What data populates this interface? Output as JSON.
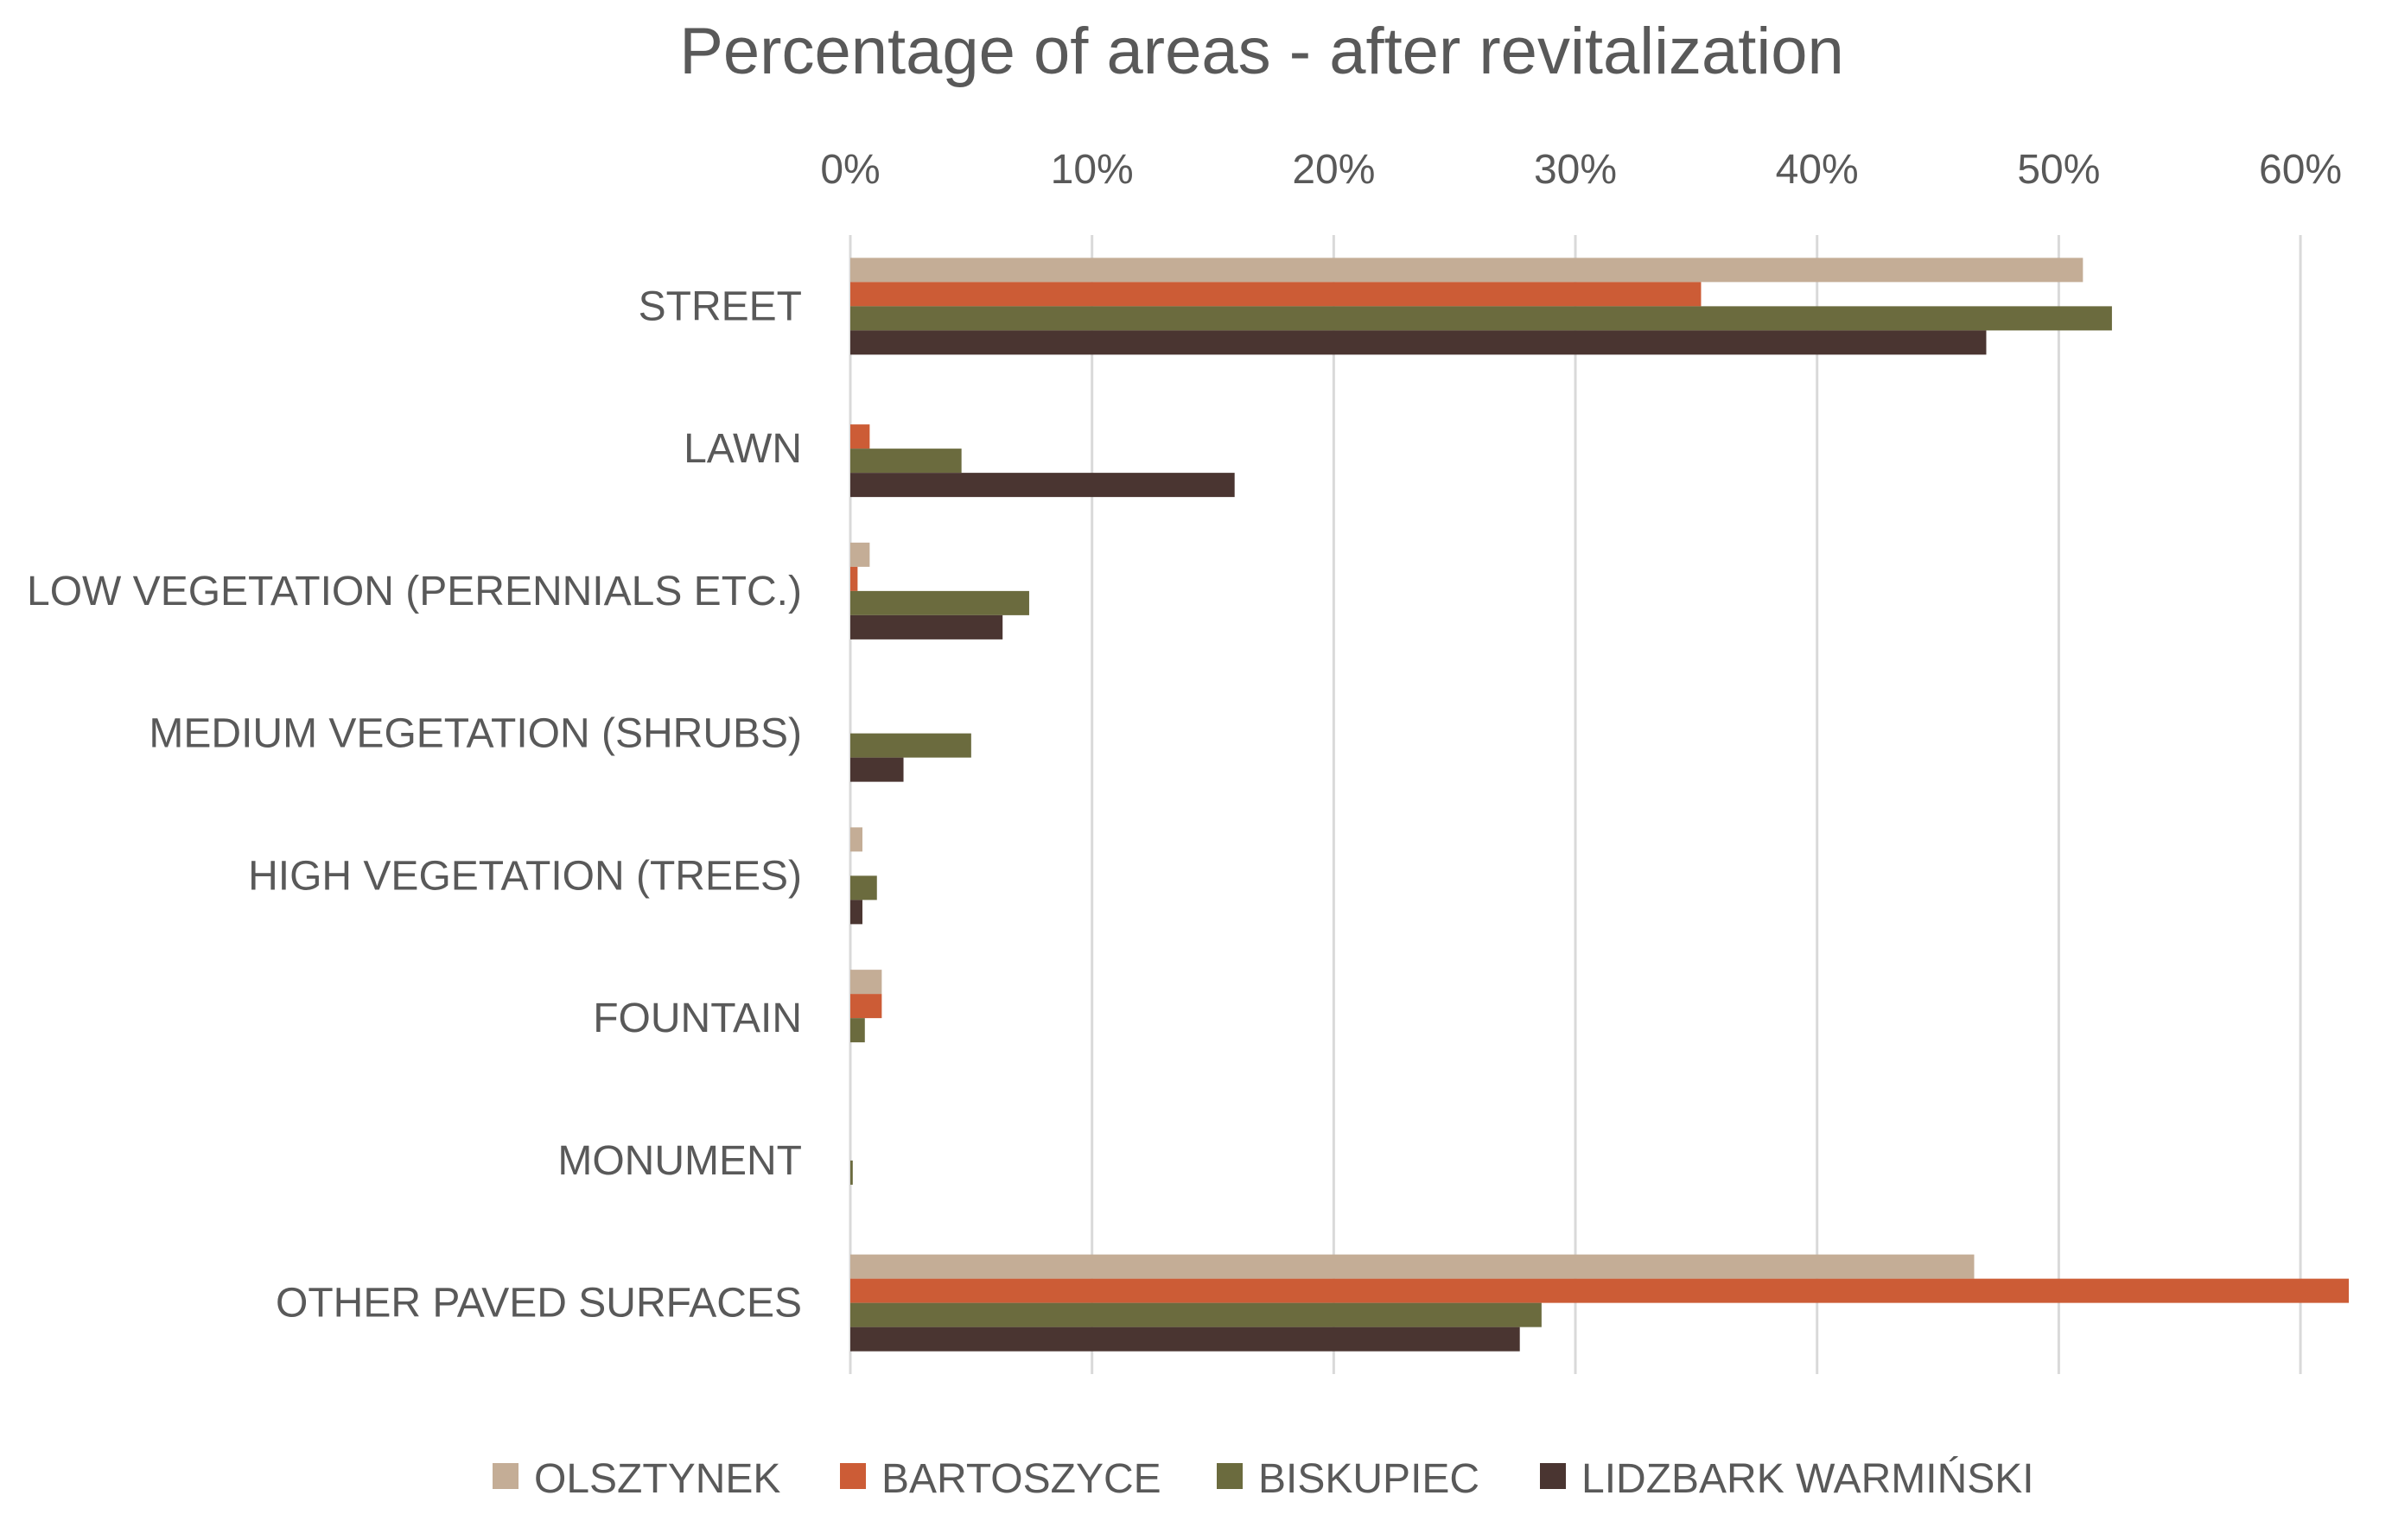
{
  "chart_data": {
    "type": "bar",
    "orientation": "horizontal",
    "title": "Percentage of areas - after revitalization",
    "xlabel": "",
    "ylabel": "",
    "xlim": [
      0,
      62
    ],
    "x_ticks": [
      0,
      10,
      20,
      30,
      40,
      50,
      60
    ],
    "x_tick_labels": [
      "0%",
      "10%",
      "20%",
      "30%",
      "40%",
      "50%",
      "60%"
    ],
    "x_axis_position": "top",
    "grid": true,
    "legend_position": "bottom",
    "categories": [
      "STREET",
      "LAWN",
      "LOW VEGETATION (PERENNIALS ETC.)",
      "MEDIUM VEGETATION (SHRUBS)",
      "HIGH VEGETATION (TREES)",
      "FOUNTAIN",
      "MONUMENT",
      "OTHER PAVED SURFACES"
    ],
    "series": [
      {
        "name": "OLSZTYNEK",
        "color": "#c4ad96",
        "values": [
          51.0,
          0,
          0.8,
          0,
          0.5,
          1.3,
          0,
          46.5
        ]
      },
      {
        "name": "BARTOSZYCE",
        "color": "#cc5c36",
        "values": [
          35.2,
          0.8,
          0.3,
          0,
          0,
          1.3,
          0,
          62.0
        ]
      },
      {
        "name": "BISKUPIEC",
        "color": "#6b6b3e",
        "values": [
          52.2,
          4.6,
          7.4,
          5.0,
          1.1,
          0.6,
          0.1,
          28.6
        ]
      },
      {
        "name": "LIDZBARK WARMIŃSKI",
        "color": "#4a3531",
        "values": [
          47.0,
          15.9,
          6.3,
          2.2,
          0.5,
          0,
          0,
          27.7
        ]
      }
    ]
  }
}
